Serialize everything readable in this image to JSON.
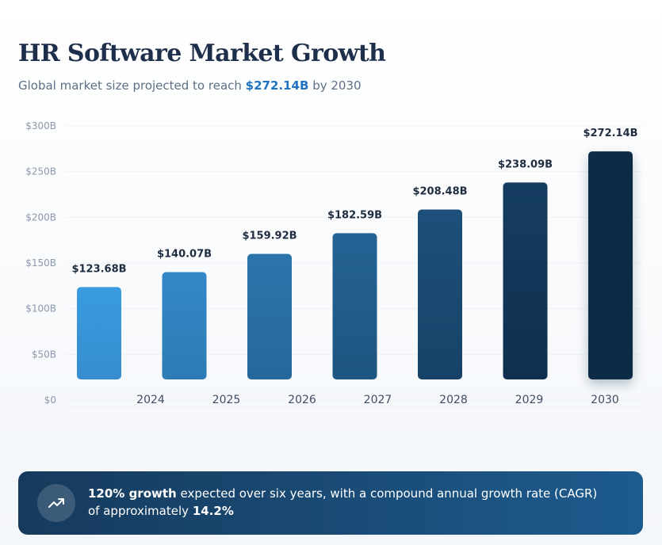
{
  "header": {
    "title": "HR Software Market Growth",
    "subtitle_prefix": "Global market size projected to reach",
    "subtitle_highlight": "$272.14B",
    "subtitle_suffix": "by 2030"
  },
  "chart_data": {
    "type": "bar",
    "title": "HR Software Market Growth",
    "categories": [
      "2024",
      "2025",
      "2026",
      "2027",
      "2028",
      "2029",
      "2030"
    ],
    "values": [
      123.68,
      140.07,
      159.92,
      182.59,
      208.48,
      238.09,
      272.14
    ],
    "data_labels": [
      "$123.68B",
      "$140.07B",
      "$159.92B",
      "$182.59B",
      "$208.48B",
      "$238.09B",
      "$272.14B"
    ],
    "y_ticks": [
      0,
      50,
      100,
      150,
      200,
      250,
      300
    ],
    "y_tick_labels": [
      "$0",
      "$50B",
      "$100B",
      "$150B",
      "$200B",
      "$250B",
      "$300B"
    ],
    "ylim": [
      0,
      300
    ],
    "grid": true,
    "xlabel": "",
    "ylabel": "",
    "colors": {
      "bar_light": "#3a9be0",
      "bar_dark": "#0d2a47",
      "grid": "#eef1f5"
    }
  },
  "callout": {
    "icon": "trending-up-icon",
    "strong1": "120% growth",
    "text1": "expected over six years, with a compound annual growth rate (CAGR) of approximately",
    "strong2": "14.2%"
  }
}
